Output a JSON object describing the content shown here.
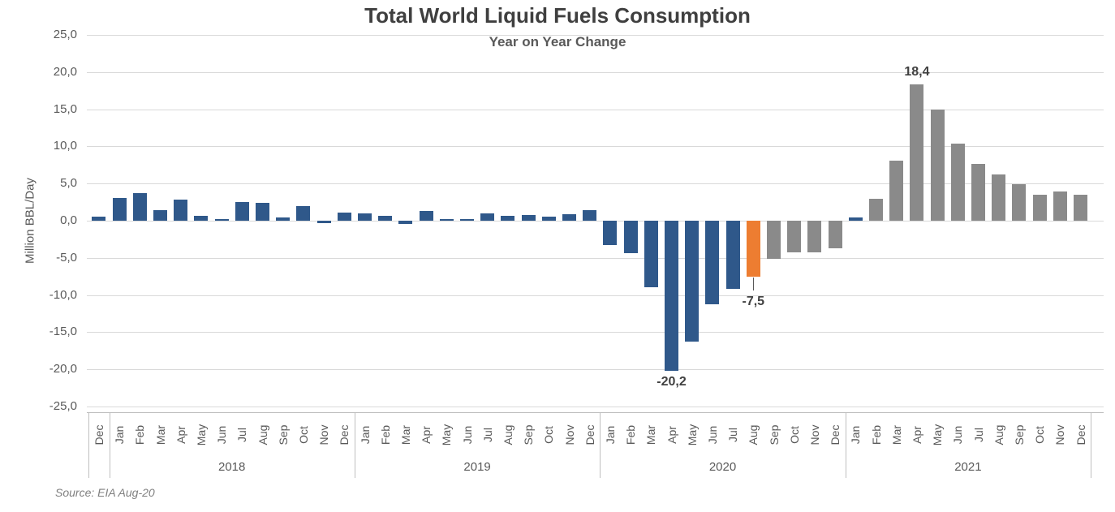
{
  "header": {
    "title": "Total World Liquid Fuels Consumption",
    "subtitle": "Year on Year Change"
  },
  "footer": {
    "source": "Source: EIA Aug-20"
  },
  "colors": {
    "actual": "#2f588a",
    "highlight": "#ed7d31",
    "forecast": "#8a8a8a",
    "grid": "#d9d9d9",
    "axis": "#bfbfbf",
    "text": "#595959",
    "annotation": "#404040"
  },
  "chart_data": {
    "type": "bar",
    "title": "Total World Liquid Fuels Consumption",
    "subtitle": "Year on Year Change",
    "ylabel": "Million BBL/Day",
    "ylim": [
      -25,
      25
    ],
    "ytick_step": 5,
    "grid": true,
    "decimal_separator": ",",
    "ytick_labels": [
      "25,0",
      "20,0",
      "15,0",
      "10,0",
      "5,0",
      "0,0",
      "-5,0",
      "-10,0",
      "-15,0",
      "-20,0",
      "-25,0"
    ],
    "categories": [
      "Dec",
      "Jan",
      "Feb",
      "Mar",
      "Apr",
      "May",
      "Jun",
      "Jul",
      "Aug",
      "Sep",
      "Oct",
      "Nov",
      "Dec",
      "Jan",
      "Feb",
      "Mar",
      "Apr",
      "May",
      "Jun",
      "Jul",
      "Aug",
      "Sep",
      "Oct",
      "Nov",
      "Dec",
      "Jan",
      "Feb",
      "Mar",
      "Apr",
      "May",
      "Jun",
      "Jul",
      "Aug",
      "Sep",
      "Oct",
      "Nov",
      "Dec",
      "Jan",
      "Feb",
      "Mar",
      "Apr",
      "May",
      "Jun",
      "Jul",
      "Aug",
      "Sep",
      "Oct",
      "Nov",
      "Dec"
    ],
    "year_groups": [
      {
        "label": "",
        "start_index": 0,
        "count": 1
      },
      {
        "label": "2018",
        "start_index": 1,
        "count": 12
      },
      {
        "label": "2019",
        "start_index": 13,
        "count": 12
      },
      {
        "label": "2020",
        "start_index": 25,
        "count": 12
      },
      {
        "label": "2021",
        "start_index": 37,
        "count": 12
      }
    ],
    "series": [
      {
        "name": "Year on Year Change (Million BBL/Day)",
        "values": [
          0.6,
          3.1,
          3.7,
          1.4,
          2.8,
          0.7,
          0.1,
          2.5,
          2.4,
          0.4,
          2.0,
          -0.3,
          1.1,
          1.0,
          0.7,
          -0.4,
          1.3,
          0.2,
          0.1,
          1.0,
          0.7,
          0.8,
          0.5,
          0.9,
          1.4,
          -3.3,
          -4.4,
          -9.0,
          -20.2,
          -16.3,
          -11.2,
          -9.2,
          -7.5,
          -5.1,
          -4.2,
          -4.3,
          -3.7,
          0.4,
          3.0,
          8.1,
          18.4,
          15.0,
          10.4,
          7.6,
          6.2,
          4.9,
          3.5,
          3.9,
          3.5
        ]
      }
    ],
    "bar_color_roles": [
      "actual",
      "actual",
      "actual",
      "actual",
      "actual",
      "actual",
      "actual",
      "actual",
      "actual",
      "actual",
      "actual",
      "actual",
      "actual",
      "actual",
      "actual",
      "actual",
      "actual",
      "actual",
      "actual",
      "actual",
      "actual",
      "actual",
      "actual",
      "actual",
      "actual",
      "actual",
      "actual",
      "actual",
      "actual",
      "actual",
      "actual",
      "actual",
      "highlight",
      "forecast",
      "forecast",
      "forecast",
      "forecast",
      "actual",
      "forecast",
      "forecast",
      "forecast",
      "forecast",
      "forecast",
      "forecast",
      "forecast",
      "forecast",
      "forecast",
      "forecast",
      "forecast"
    ],
    "annotations": [
      {
        "index": 28,
        "label": "-20,2",
        "placement": "below",
        "leader_line": false
      },
      {
        "index": 32,
        "label": "-7,5",
        "placement": "below",
        "leader_line": true
      },
      {
        "index": 40,
        "label": "18,4",
        "placement": "above",
        "leader_line": false
      }
    ]
  }
}
